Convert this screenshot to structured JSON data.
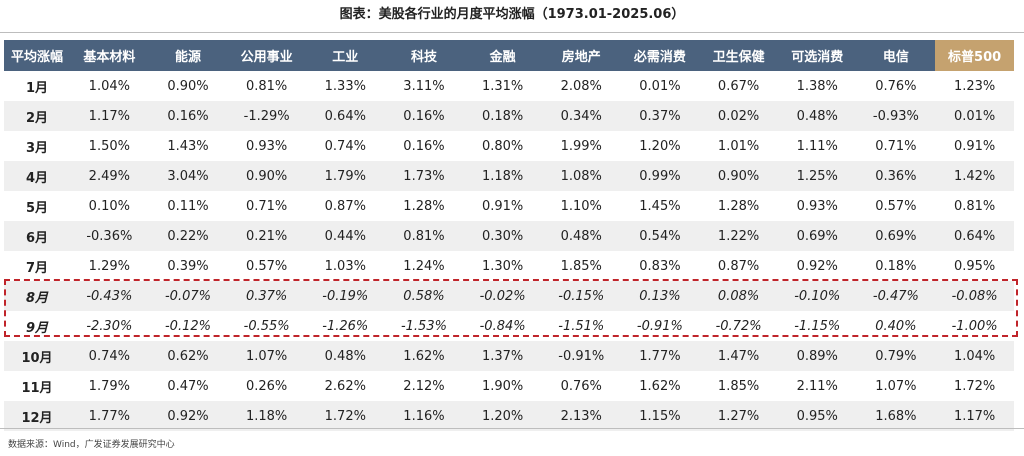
{
  "title": "图表：美股各行业的月度平均涨幅（1973.01-2025.06）",
  "header": [
    "平均涨幅",
    "基本材料",
    "能源",
    "公用事业",
    "工业",
    "科技",
    "金融",
    "房地产",
    "必需消费",
    "卫生保健",
    "可选消费",
    "电信",
    "标普500"
  ],
  "rows": [
    {
      "month": "1月",
      "values": [
        "1.04%",
        "0.90%",
        "0.81%",
        "1.33%",
        "3.11%",
        "1.31%",
        "2.08%",
        "0.01%",
        "0.67%",
        "1.38%",
        "0.76%",
        "1.23%"
      ]
    },
    {
      "month": "2月",
      "values": [
        "1.17%",
        "0.16%",
        "-1.29%",
        "0.64%",
        "0.16%",
        "0.18%",
        "0.34%",
        "0.37%",
        "0.02%",
        "0.48%",
        "-0.93%",
        "0.01%"
      ]
    },
    {
      "month": "3月",
      "values": [
        "1.50%",
        "1.43%",
        "0.93%",
        "0.74%",
        "0.16%",
        "0.80%",
        "1.99%",
        "1.20%",
        "1.01%",
        "1.11%",
        "0.71%",
        "0.91%"
      ]
    },
    {
      "month": "4月",
      "values": [
        "2.49%",
        "3.04%",
        "0.90%",
        "1.79%",
        "1.73%",
        "1.18%",
        "1.08%",
        "0.99%",
        "0.90%",
        "1.25%",
        "0.36%",
        "1.42%"
      ]
    },
    {
      "month": "5月",
      "values": [
        "0.10%",
        "0.11%",
        "0.71%",
        "0.87%",
        "1.28%",
        "0.91%",
        "1.10%",
        "1.45%",
        "1.28%",
        "0.93%",
        "0.57%",
        "0.81%"
      ]
    },
    {
      "month": "6月",
      "values": [
        "-0.36%",
        "0.22%",
        "0.21%",
        "0.44%",
        "0.81%",
        "0.30%",
        "0.48%",
        "0.54%",
        "1.22%",
        "0.69%",
        "0.69%",
        "0.64%"
      ]
    },
    {
      "month": "7月",
      "values": [
        "1.29%",
        "0.39%",
        "0.57%",
        "1.03%",
        "1.24%",
        "1.30%",
        "1.85%",
        "0.83%",
        "0.87%",
        "0.92%",
        "0.18%",
        "0.95%"
      ]
    },
    {
      "month": "8月",
      "values": [
        "-0.43%",
        "-0.07%",
        "0.37%",
        "-0.19%",
        "0.58%",
        "-0.02%",
        "-0.15%",
        "0.13%",
        "0.08%",
        "-0.10%",
        "-0.47%",
        "-0.08%"
      ]
    },
    {
      "month": "9月",
      "values": [
        "-2.30%",
        "-0.12%",
        "-0.55%",
        "-1.26%",
        "-1.53%",
        "-0.84%",
        "-1.51%",
        "-0.91%",
        "-0.72%",
        "-1.15%",
        "0.40%",
        "-1.00%"
      ]
    },
    {
      "month": "10月",
      "values": [
        "0.74%",
        "0.62%",
        "1.07%",
        "0.48%",
        "1.62%",
        "1.37%",
        "-0.91%",
        "1.77%",
        "1.47%",
        "0.89%",
        "0.79%",
        "1.04%"
      ]
    },
    {
      "month": "11月",
      "values": [
        "1.79%",
        "0.47%",
        "0.26%",
        "2.62%",
        "2.12%",
        "1.90%",
        "0.76%",
        "1.62%",
        "1.85%",
        "2.11%",
        "1.07%",
        "1.72%"
      ]
    },
    {
      "month": "12月",
      "values": [
        "1.77%",
        "0.92%",
        "1.18%",
        "1.72%",
        "1.16%",
        "1.20%",
        "2.13%",
        "1.15%",
        "1.27%",
        "0.95%",
        "1.68%",
        "1.17%"
      ]
    }
  ],
  "highlight_months": [
    "8月",
    "9月"
  ],
  "source": "数据来源：Wind，广发证券发展研究中心",
  "colors": {
    "header_bg": "#4b627e",
    "sp500_header_bg": "#c5a26f",
    "alt_row_bg": "#efefef",
    "highlight_border": "#c0242a"
  }
}
